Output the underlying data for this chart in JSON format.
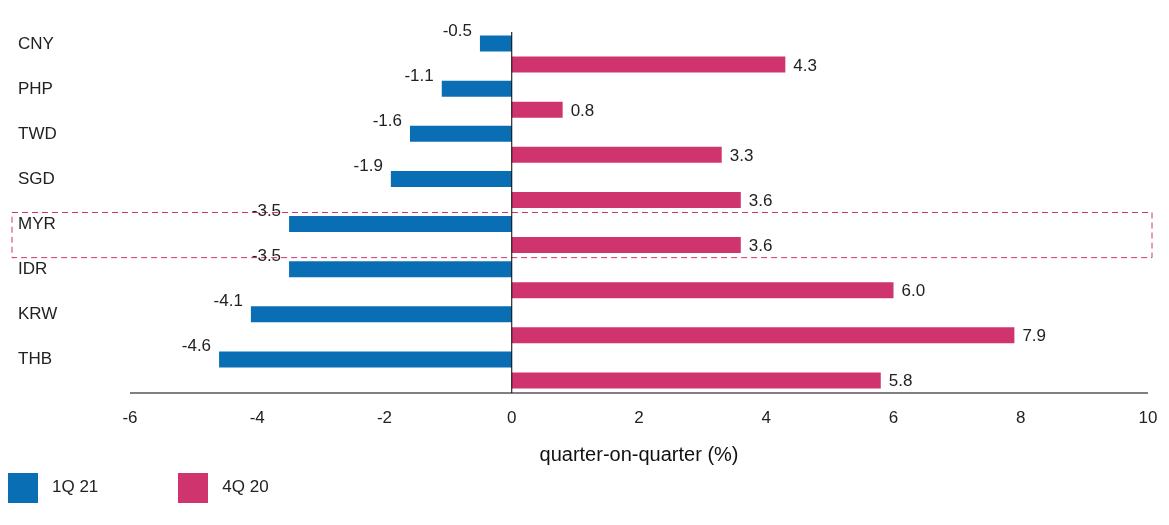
{
  "chart_data": {
    "type": "bar",
    "orientation": "horizontal",
    "xlabel": "quarter-on-quarter (%)",
    "categories": [
      "CNY",
      "PHP",
      "TWD",
      "SGD",
      "MYR",
      "IDR",
      "KRW",
      "THB"
    ],
    "series": [
      {
        "name": "1Q 21",
        "color": "#0a6eb4",
        "values": [
          -0.5,
          -1.1,
          -1.6,
          -1.9,
          -3.5,
          -3.5,
          -4.1,
          -4.6
        ],
        "value_labels": [
          "-0.5",
          "-1.1",
          "-1.6",
          "-1.9",
          "-3.5",
          "-3.5",
          "-4.1",
          "-4.6"
        ]
      },
      {
        "name": "4Q 20",
        "color": "#d0346e",
        "values": [
          4.3,
          0.8,
          3.3,
          3.6,
          3.6,
          6.0,
          7.9,
          5.8
        ],
        "value_labels": [
          "4.3",
          "0.8",
          "3.3",
          "3.6",
          "3.6",
          "6.0",
          "7.9",
          "5.8"
        ]
      }
    ],
    "xlim": [
      -6,
      10
    ],
    "xticks": [
      -6,
      -4,
      -2,
      0,
      2,
      4,
      6,
      8,
      10
    ],
    "ref_lines": [
      {
        "axis": "x",
        "value": 0,
        "color": "#000000"
      }
    ],
    "grid": false,
    "legend": "bottom left"
  }
}
